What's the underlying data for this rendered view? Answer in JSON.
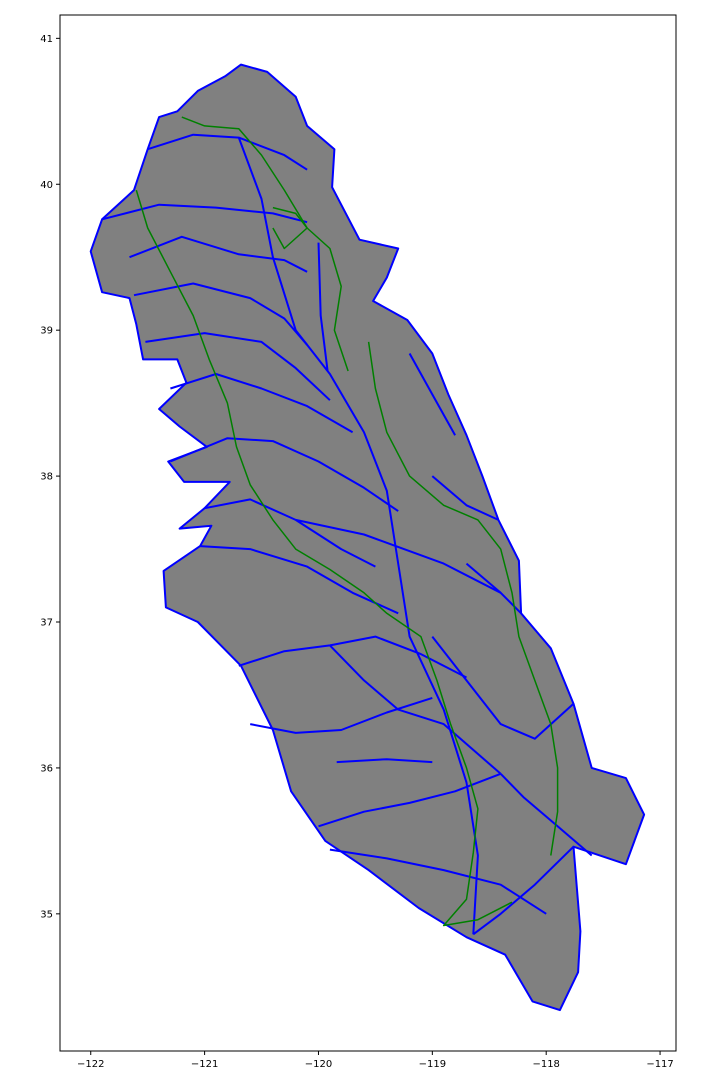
{
  "map": {
    "lon_range": [
      -122.27,
      -116.86
    ],
    "lat_range": [
      34.06,
      41.16
    ],
    "x_ticks": [
      {
        "value": -122,
        "label": "−122"
      },
      {
        "value": -121,
        "label": "−121"
      },
      {
        "value": -120,
        "label": "−120"
      },
      {
        "value": -119,
        "label": "−119"
      },
      {
        "value": -118,
        "label": "−118"
      },
      {
        "value": -117,
        "label": "−117"
      }
    ],
    "y_ticks": [
      {
        "value": 41,
        "label": "41"
      },
      {
        "value": 40,
        "label": "40"
      },
      {
        "value": 39,
        "label": "39"
      },
      {
        "value": 38,
        "label": "38"
      },
      {
        "value": 37,
        "label": "37"
      },
      {
        "value": 36,
        "label": "36"
      },
      {
        "value": 35,
        "label": "35"
      }
    ],
    "colors": {
      "fill": "#808080",
      "boundary": "#0000ff",
      "river": "#008000",
      "frame": "#000000"
    },
    "region_outline": [
      [
        -120.68,
        40.82
      ],
      [
        -120.45,
        40.77
      ],
      [
        -120.2,
        40.6
      ],
      [
        -120.1,
        40.4
      ],
      [
        -119.86,
        40.24
      ],
      [
        -119.88,
        39.98
      ],
      [
        -119.64,
        39.62
      ],
      [
        -119.3,
        39.56
      ],
      [
        -119.4,
        39.36
      ],
      [
        -119.52,
        39.2
      ],
      [
        -119.22,
        39.07
      ],
      [
        -119.0,
        38.84
      ],
      [
        -118.86,
        38.56
      ],
      [
        -118.7,
        38.28
      ],
      [
        -118.56,
        38.0
      ],
      [
        -118.42,
        37.7
      ],
      [
        -118.24,
        37.42
      ],
      [
        -118.22,
        37.06
      ],
      [
        -117.96,
        36.82
      ],
      [
        -117.76,
        36.44
      ],
      [
        -117.6,
        36.0
      ],
      [
        -117.3,
        35.93
      ],
      [
        -117.14,
        35.68
      ],
      [
        -117.3,
        35.34
      ],
      [
        -117.76,
        35.46
      ],
      [
        -117.7,
        34.88
      ],
      [
        -117.72,
        34.6
      ],
      [
        -117.88,
        34.34
      ],
      [
        -118.12,
        34.4
      ],
      [
        -118.36,
        34.72
      ],
      [
        -118.7,
        34.84
      ],
      [
        -119.12,
        35.04
      ],
      [
        -119.56,
        35.3
      ],
      [
        -119.94,
        35.5
      ],
      [
        -120.24,
        35.84
      ],
      [
        -120.4,
        36.26
      ],
      [
        -120.68,
        36.7
      ],
      [
        -121.06,
        37.0
      ],
      [
        -121.34,
        37.1
      ],
      [
        -121.36,
        37.35
      ],
      [
        -121.04,
        37.52
      ],
      [
        -120.94,
        37.66
      ],
      [
        -121.22,
        37.64
      ],
      [
        -121.0,
        37.78
      ],
      [
        -120.78,
        37.96
      ],
      [
        -121.18,
        37.96
      ],
      [
        -121.32,
        38.1
      ],
      [
        -120.98,
        38.2
      ],
      [
        -121.22,
        38.34
      ],
      [
        -121.4,
        38.46
      ],
      [
        -121.16,
        38.64
      ],
      [
        -121.24,
        38.8
      ],
      [
        -121.54,
        38.8
      ],
      [
        -121.6,
        39.04
      ],
      [
        -121.66,
        39.22
      ],
      [
        -121.9,
        39.26
      ],
      [
        -122.0,
        39.54
      ],
      [
        -121.9,
        39.76
      ],
      [
        -121.62,
        39.96
      ],
      [
        -121.5,
        40.24
      ],
      [
        -121.4,
        40.46
      ],
      [
        -121.24,
        40.5
      ],
      [
        -121.06,
        40.64
      ],
      [
        -120.82,
        40.74
      ],
      [
        -120.68,
        40.82
      ]
    ],
    "boundaries": [
      [
        [
          -121.5,
          40.24
        ],
        [
          -121.1,
          40.34
        ],
        [
          -120.7,
          40.32
        ],
        [
          -120.3,
          40.2
        ],
        [
          -120.1,
          40.1
        ]
      ],
      [
        [
          -121.9,
          39.76
        ],
        [
          -121.4,
          39.86
        ],
        [
          -120.9,
          39.84
        ],
        [
          -120.4,
          39.8
        ],
        [
          -120.1,
          39.74
        ]
      ],
      [
        [
          -121.66,
          39.5
        ],
        [
          -121.2,
          39.64
        ],
        [
          -120.7,
          39.52
        ],
        [
          -120.3,
          39.48
        ],
        [
          -120.1,
          39.4
        ]
      ],
      [
        [
          -121.62,
          39.24
        ],
        [
          -121.1,
          39.32
        ],
        [
          -120.6,
          39.22
        ],
        [
          -120.3,
          39.08
        ],
        [
          -120.1,
          38.9
        ]
      ],
      [
        [
          -121.52,
          38.92
        ],
        [
          -121.0,
          38.98
        ],
        [
          -120.5,
          38.92
        ],
        [
          -120.2,
          38.74
        ],
        [
          -119.9,
          38.52
        ]
      ],
      [
        [
          -121.3,
          38.6
        ],
        [
          -120.9,
          38.7
        ],
        [
          -120.5,
          38.6
        ],
        [
          -120.1,
          38.48
        ],
        [
          -119.7,
          38.3
        ]
      ],
      [
        [
          -121.3,
          38.1
        ],
        [
          -120.8,
          38.26
        ],
        [
          -120.4,
          38.24
        ],
        [
          -120.0,
          38.1
        ],
        [
          -119.6,
          37.92
        ],
        [
          -119.3,
          37.76
        ]
      ],
      [
        [
          -121.0,
          37.78
        ],
        [
          -120.6,
          37.84
        ],
        [
          -120.2,
          37.7
        ],
        [
          -119.8,
          37.5
        ],
        [
          -119.5,
          37.38
        ]
      ],
      [
        [
          -121.04,
          37.52
        ],
        [
          -120.6,
          37.5
        ],
        [
          -120.1,
          37.38
        ],
        [
          -119.7,
          37.2
        ],
        [
          -119.3,
          37.06
        ]
      ],
      [
        [
          -120.7,
          36.7
        ],
        [
          -120.3,
          36.8
        ],
        [
          -119.9,
          36.84
        ],
        [
          -119.5,
          36.9
        ],
        [
          -119.1,
          36.78
        ],
        [
          -118.7,
          36.62
        ]
      ],
      [
        [
          -120.6,
          36.3
        ],
        [
          -120.2,
          36.24
        ],
        [
          -119.8,
          36.26
        ],
        [
          -119.4,
          36.38
        ],
        [
          -119.0,
          36.48
        ]
      ],
      [
        [
          -119.84,
          36.04
        ],
        [
          -119.4,
          36.06
        ],
        [
          -119.0,
          36.04
        ]
      ],
      [
        [
          -120.0,
          35.6
        ],
        [
          -119.6,
          35.7
        ],
        [
          -119.2,
          35.76
        ],
        [
          -118.8,
          35.84
        ],
        [
          -118.4,
          35.96
        ]
      ],
      [
        [
          -119.9,
          35.44
        ],
        [
          -119.4,
          35.38
        ],
        [
          -118.9,
          35.3
        ],
        [
          -118.4,
          35.2
        ],
        [
          -118.0,
          35.0
        ]
      ],
      [
        [
          -118.64,
          34.86
        ],
        [
          -118.4,
          35.0
        ],
        [
          -118.1,
          35.2
        ],
        [
          -117.76,
          35.46
        ]
      ],
      [
        [
          -119.2,
          38.84
        ],
        [
          -119.0,
          38.56
        ],
        [
          -118.8,
          38.28
        ]
      ],
      [
        [
          -119.0,
          38.0
        ],
        [
          -118.7,
          37.8
        ],
        [
          -118.42,
          37.7
        ]
      ],
      [
        [
          -118.7,
          37.4
        ],
        [
          -118.4,
          37.2
        ],
        [
          -118.22,
          37.06
        ]
      ],
      [
        [
          -119.0,
          36.9
        ],
        [
          -118.7,
          36.6
        ],
        [
          -118.4,
          36.3
        ],
        [
          -118.1,
          36.2
        ],
        [
          -117.76,
          36.44
        ]
      ],
      [
        [
          -118.4,
          35.96
        ],
        [
          -118.2,
          35.8
        ],
        [
          -117.9,
          35.6
        ],
        [
          -117.6,
          35.4
        ]
      ],
      [
        [
          -120.0,
          39.6
        ],
        [
          -119.98,
          39.1
        ],
        [
          -119.92,
          38.72
        ]
      ],
      [
        [
          -120.7,
          40.32
        ],
        [
          -120.5,
          39.9
        ],
        [
          -120.4,
          39.5
        ],
        [
          -120.2,
          39.0
        ],
        [
          -119.9,
          38.7
        ],
        [
          -119.6,
          38.3
        ],
        [
          -119.4,
          37.9
        ],
        [
          -119.3,
          37.4
        ],
        [
          -119.2,
          36.9
        ],
        [
          -118.9,
          36.4
        ],
        [
          -118.7,
          35.9
        ],
        [
          -118.6,
          35.4
        ],
        [
          -118.64,
          34.86
        ]
      ],
      [
        [
          -120.2,
          37.7
        ],
        [
          -119.6,
          37.6
        ],
        [
          -118.9,
          37.4
        ],
        [
          -118.4,
          37.2
        ]
      ],
      [
        [
          -119.9,
          36.84
        ],
        [
          -119.6,
          36.6
        ],
        [
          -119.3,
          36.4
        ],
        [
          -118.9,
          36.3
        ],
        [
          -118.4,
          35.96
        ]
      ]
    ],
    "rivers": [
      [
        [
          -121.2,
          40.46
        ],
        [
          -121.0,
          40.4
        ],
        [
          -120.7,
          40.38
        ],
        [
          -120.5,
          40.2
        ],
        [
          -120.3,
          39.96
        ],
        [
          -120.1,
          39.7
        ],
        [
          -119.9,
          39.56
        ],
        [
          -119.8,
          39.3
        ],
        [
          -119.86,
          39.0
        ],
        [
          -119.74,
          38.72
        ]
      ],
      [
        [
          -121.6,
          39.96
        ],
        [
          -121.5,
          39.7
        ],
        [
          -121.3,
          39.4
        ],
        [
          -121.1,
          39.1
        ],
        [
          -120.96,
          38.8
        ],
        [
          -120.8,
          38.5
        ],
        [
          -120.72,
          38.2
        ],
        [
          -120.6,
          37.94
        ],
        [
          -120.4,
          37.7
        ],
        [
          -120.2,
          37.5
        ],
        [
          -119.9,
          37.36
        ],
        [
          -119.6,
          37.2
        ],
        [
          -119.4,
          37.06
        ],
        [
          -119.1,
          36.9
        ],
        [
          -118.96,
          36.6
        ],
        [
          -118.84,
          36.3
        ],
        [
          -118.7,
          36.0
        ],
        [
          -118.6,
          35.72
        ],
        [
          -118.64,
          35.42
        ],
        [
          -118.7,
          35.1
        ],
        [
          -118.9,
          34.92
        ],
        [
          -118.6,
          34.96
        ],
        [
          -118.3,
          35.08
        ]
      ],
      [
        [
          -119.56,
          38.92
        ],
        [
          -119.5,
          38.6
        ],
        [
          -119.4,
          38.3
        ],
        [
          -119.2,
          38.0
        ],
        [
          -118.9,
          37.8
        ],
        [
          -118.6,
          37.7
        ],
        [
          -118.4,
          37.5
        ],
        [
          -118.3,
          37.2
        ],
        [
          -118.24,
          36.9
        ],
        [
          -118.1,
          36.6
        ],
        [
          -117.96,
          36.3
        ],
        [
          -117.9,
          36.0
        ],
        [
          -117.9,
          35.7
        ],
        [
          -117.96,
          35.4
        ]
      ],
      [
        [
          -120.4,
          39.84
        ],
        [
          -120.2,
          39.8
        ],
        [
          -120.1,
          39.7
        ],
        [
          -120.3,
          39.56
        ],
        [
          -120.4,
          39.7
        ]
      ]
    ]
  }
}
